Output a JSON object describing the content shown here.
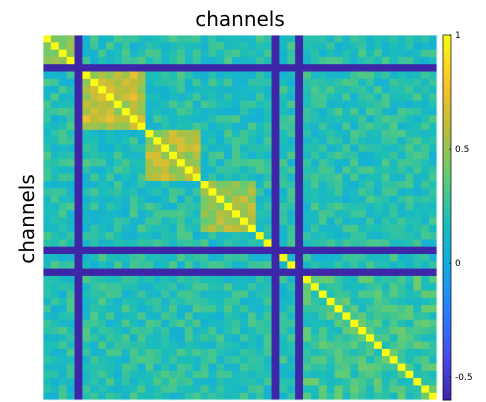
{
  "chart_data": {
    "type": "heatmap",
    "title": "channels",
    "xlabel": "",
    "ylabel": "channels",
    "n_channels": 50,
    "colormap": "parula",
    "clim": [
      -0.6,
      1
    ],
    "colorbar": {
      "ticks": [
        {
          "value": 1,
          "label": "1"
        },
        {
          "value": 0.5,
          "label": "0.5"
        },
        {
          "value": 0,
          "label": "0"
        },
        {
          "value": -0.5,
          "label": "-0.5"
        }
      ]
    },
    "diagonal_value": 1,
    "bad_channels": [
      4,
      29,
      32
    ],
    "bad_value": -0.6,
    "background_value": 0.2,
    "blocks": [
      {
        "rows": [
          0,
          3
        ],
        "cols": [
          0,
          3
        ],
        "value": 0.55
      },
      {
        "rows": [
          5,
          12
        ],
        "cols": [
          5,
          12
        ],
        "value": 0.6
      },
      {
        "rows": [
          13,
          19
        ],
        "cols": [
          13,
          19
        ],
        "value": 0.55
      },
      {
        "rows": [
          20,
          26
        ],
        "cols": [
          20,
          26
        ],
        "value": 0.5
      },
      {
        "rows": [
          33,
          49
        ],
        "cols": [
          33,
          49
        ],
        "value": 0.28
      }
    ]
  }
}
